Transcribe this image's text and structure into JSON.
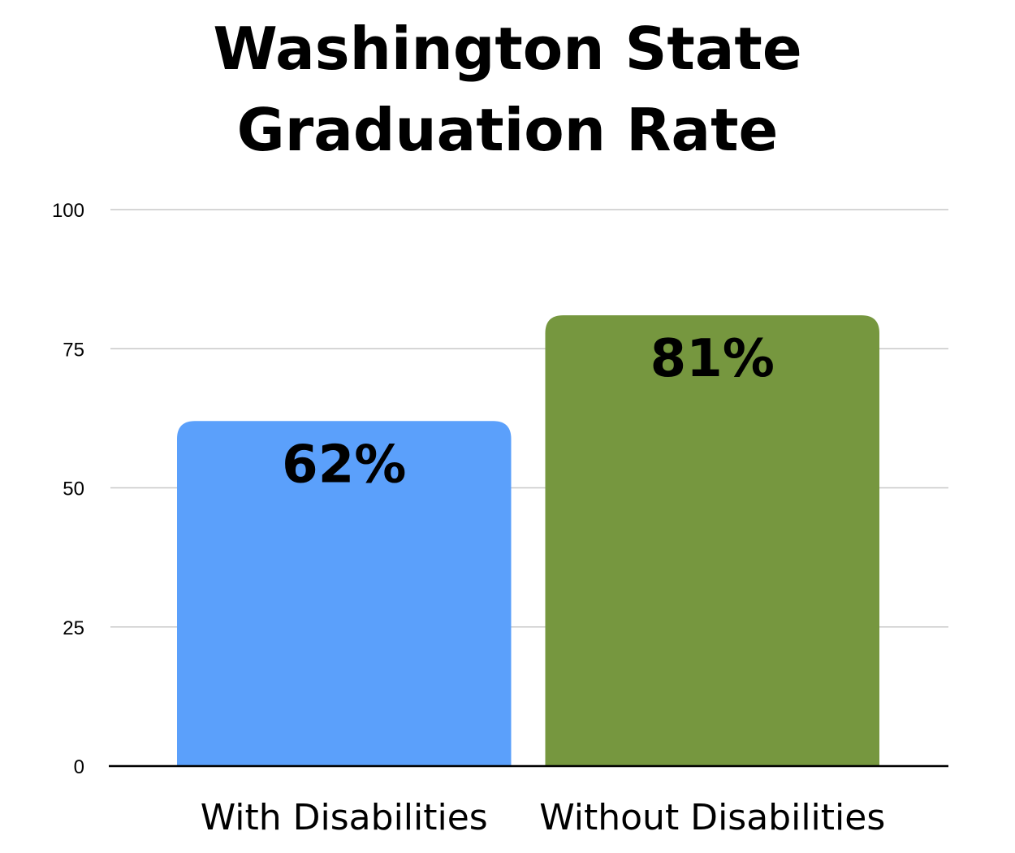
{
  "chart_data": {
    "type": "bar",
    "title_lines": [
      "Washington State",
      "Graduation Rate"
    ],
    "categories": [
      "With Disabilities",
      "Without Disabilities"
    ],
    "values": [
      62,
      81
    ],
    "data_labels": [
      "62%",
      "81%"
    ],
    "colors": [
      "#5ba0fb",
      "#76973f"
    ],
    "ylim": [
      0,
      100
    ],
    "yticks": [
      0,
      25,
      50,
      75,
      100
    ],
    "ytick_labels": [
      "0",
      "25",
      "50",
      "75",
      "100"
    ],
    "grid": true,
    "legend": "none"
  }
}
